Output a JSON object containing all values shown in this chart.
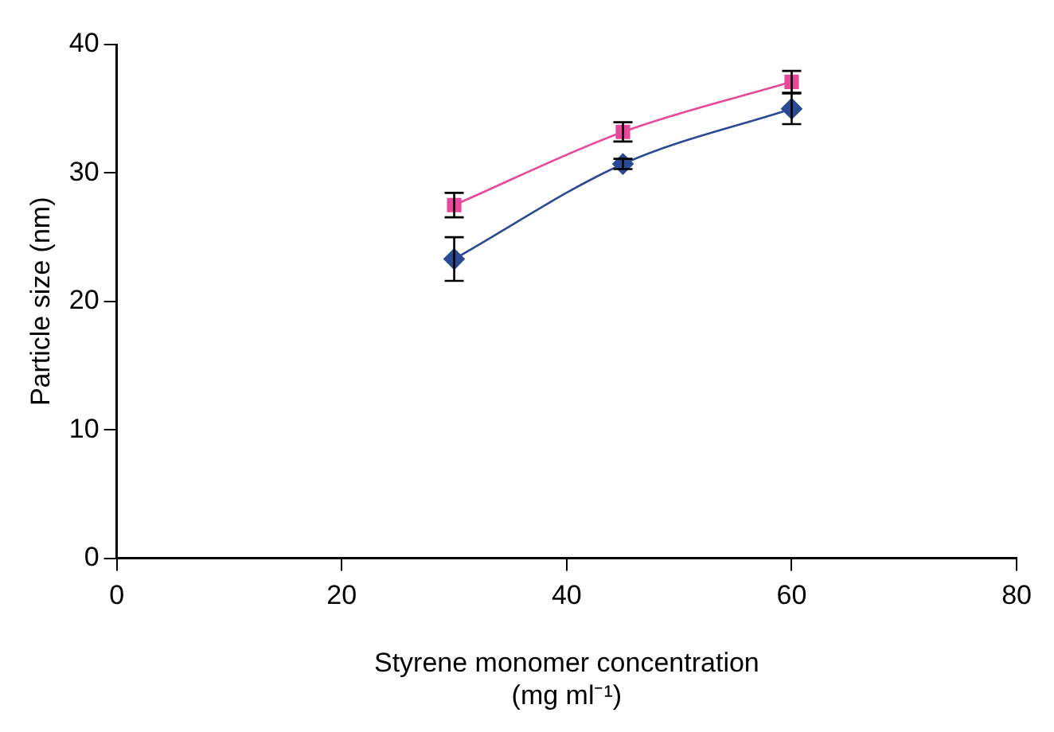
{
  "chart_data": {
    "type": "line",
    "xlabel": "Styrene monomer concentration (mg ml⁻¹)",
    "ylabel": "Particle size (nm)",
    "x": [
      30,
      45,
      60
    ],
    "series": [
      {
        "color": "#e8489a",
        "marker": "square",
        "values": [
          27.5,
          33.2,
          37.1
        ],
        "errors": [
          0.95,
          0.75,
          0.85
        ]
      },
      {
        "color": "#2a4a94",
        "marker": "diamond",
        "values": [
          23.3,
          30.7,
          35.0
        ],
        "errors": [
          1.7,
          0.4,
          1.2
        ]
      }
    ],
    "xlim": [
      0,
      80
    ],
    "xticks": [
      0,
      20,
      40,
      60,
      80
    ],
    "ylim": [
      0,
      40
    ],
    "yticks": [
      0,
      10,
      20,
      30,
      40
    ],
    "grid": false,
    "legend": false
  }
}
